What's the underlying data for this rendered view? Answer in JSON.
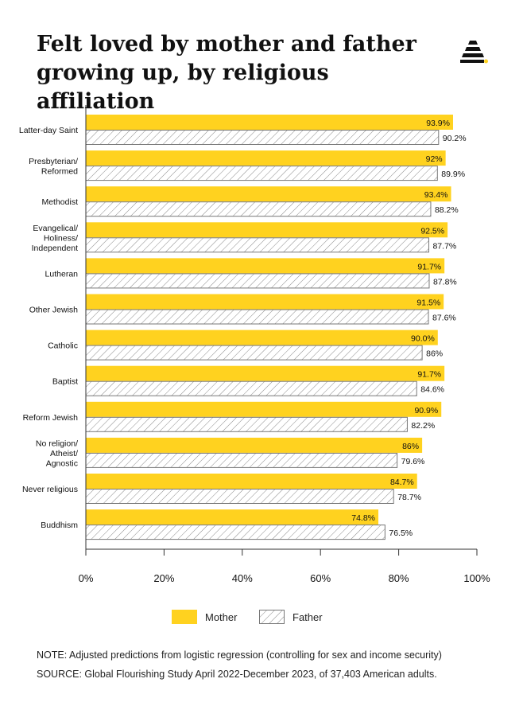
{
  "title": "Felt loved by mother and father growing up, by religious affiliation",
  "colors": {
    "mother": "#FFD21F",
    "father_stroke": "#777777",
    "axis": "#333333"
  },
  "legend": {
    "mother": "Mother",
    "father": "Father"
  },
  "note": "NOTE: Adjusted predictions from logistic regression (controlling for sex and income security)",
  "source": "SOURCE: Global Flourishing Study April 2022-December 2023, of 37,403 American adults.",
  "chart_data": {
    "type": "bar",
    "orientation": "horizontal",
    "categories": [
      [
        "Latter-day Saint"
      ],
      [
        "Presbyterian/",
        "Reformed"
      ],
      [
        "Methodist"
      ],
      [
        "Evangelical/",
        "Holiness/",
        "Independent"
      ],
      [
        "Lutheran"
      ],
      [
        "Other Jewish"
      ],
      [
        "Catholic"
      ],
      [
        "Baptist"
      ],
      [
        "Reform Jewish"
      ],
      [
        "No religion/",
        "Atheist/",
        "Agnostic"
      ],
      [
        "Never religious"
      ],
      [
        "Buddhism"
      ]
    ],
    "series": [
      {
        "name": "Mother",
        "values": [
          93.9,
          92,
          93.4,
          92.5,
          91.7,
          91.5,
          90.0,
          91.7,
          90.9,
          86,
          84.7,
          74.8
        ],
        "labels": [
          "93.9%",
          "92%",
          "93.4%",
          "92.5%",
          "91.7%",
          "91.5%",
          "90.0%",
          "91.7%",
          "90.9%",
          "86%",
          "84.7%",
          "74.8%"
        ]
      },
      {
        "name": "Father",
        "values": [
          90.2,
          89.9,
          88.2,
          87.7,
          87.8,
          87.6,
          86,
          84.6,
          82.2,
          79.6,
          78.7,
          76.5
        ],
        "labels": [
          "90.2%",
          "89.9%",
          "88.2%",
          "87.7%",
          "87.8%",
          "87.6%",
          "86%",
          "84.6%",
          "82.2%",
          "79.6%",
          "78.7%",
          "76.5%"
        ]
      }
    ],
    "xlim": [
      0,
      100
    ],
    "xticks": [
      0,
      20,
      40,
      60,
      80,
      100
    ],
    "xtick_labels": [
      "0%",
      "20%",
      "40%",
      "60%",
      "80%",
      "100%"
    ],
    "grid": false,
    "legend_position": "bottom"
  }
}
